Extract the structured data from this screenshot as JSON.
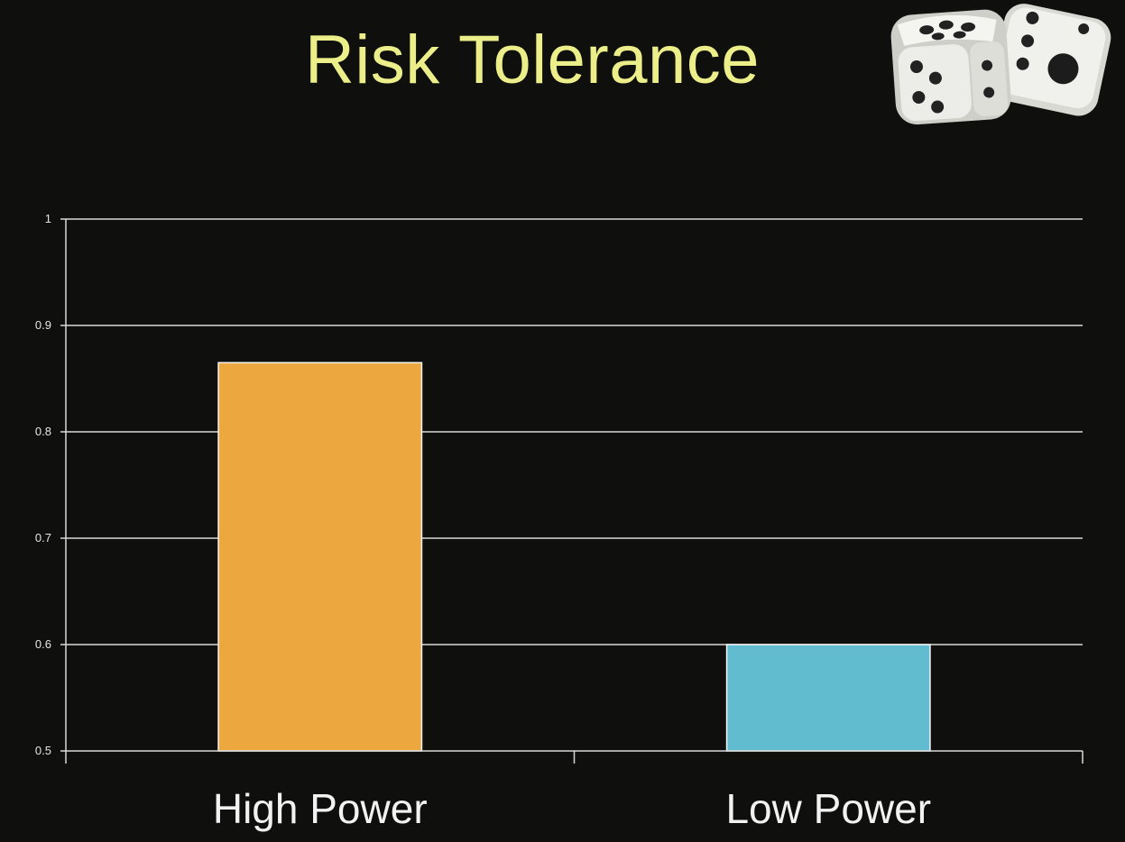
{
  "slide": {
    "title": "Risk Tolerance",
    "title_color": "#ecee8a",
    "background": "#0f100d",
    "decoration_icon": "dice-icon"
  },
  "chart_data": {
    "type": "bar",
    "title": "Risk Tolerance",
    "categories": [
      "High Power",
      "Low Power"
    ],
    "values": [
      0.865,
      0.6
    ],
    "colors": [
      "#eca83e",
      "#62bccf"
    ],
    "ylim": [
      0.5,
      1.0
    ],
    "yticks": [
      "0.5",
      "0.6",
      "0.7",
      "0.8",
      "0.9",
      "1"
    ],
    "xlabel": "",
    "ylabel": "",
    "grid": true,
    "legend": "none"
  }
}
